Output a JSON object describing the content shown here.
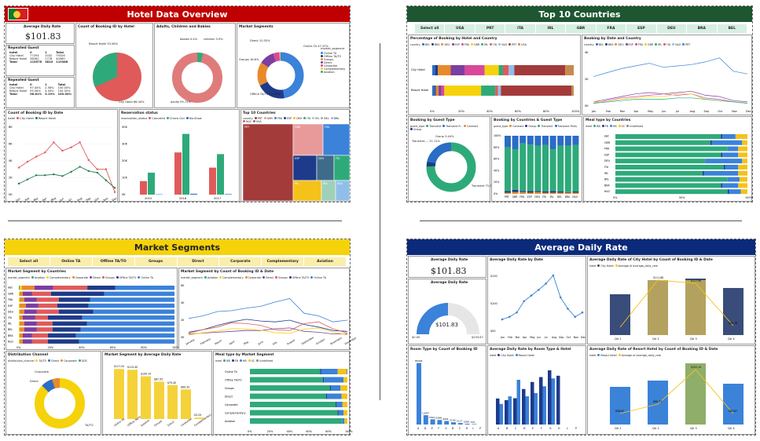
{
  "hotel": {
    "title": "Hotel Data Overview",
    "adr_label": "Average Daily Rate",
    "adr_value": "$101.83",
    "repeated_label": "Repeated Guest",
    "rep1": {
      "head": [
        "hotel",
        "0",
        "1",
        "Total"
      ],
      "rows": [
        [
          "City Hotel",
          "77294",
          "2032",
          "79326"
        ],
        [
          "Resort Hotel",
          "38282",
          "1778",
          "40060"
        ],
        [
          "Total",
          "115576",
          "3810",
          "119386"
        ]
      ]
    },
    "rep2": {
      "head": [
        "hotel",
        "0",
        "1",
        "Total"
      ],
      "rows": [
        [
          "City Hotel",
          "97.44%",
          "2.56%",
          "100.00%"
        ],
        [
          "Resort Hotel",
          "95.56%",
          "4.44%",
          "100.00%"
        ],
        [
          "Total",
          "96.81%",
          "3.19%",
          "100.00%"
        ]
      ]
    },
    "pie_title": "Count of Booking ID by Hotel",
    "pie_label_resort": "Resort Hotel 33.56%",
    "pie_label_city": "City Hotel 66.44%",
    "donut1_title": "Adults, Children and Babies",
    "donut1_l1": "babies 0.4%",
    "donut1_l2": "children 3.9%",
    "donut1_l3": "adults 95.72%",
    "donut2_title": "Market Segments",
    "donut2_legend_title": "market_segment",
    "donut2_legend": [
      "Online TA",
      "Offline TA/TO",
      "Groups",
      "Direct",
      "Corporate",
      "Complementary",
      "Aviation"
    ],
    "donut2_l1": "Online TA 47.37%",
    "donut2_l2": "Offline TA/TO 20.29%",
    "donut2_l3": "Groups 16.6%",
    "donut2_l4": "Direct 10.55%",
    "donut2_l5": "Corporate 4.43%",
    "line_title": "Count of Booking ID by Date",
    "line_legend": [
      "hotel",
      "City Hotel",
      "Resort Hotel"
    ],
    "line_y": [
      "8K",
      "6K",
      "4K",
      "2K",
      "0K"
    ],
    "line_x": [
      "Jan",
      "Feb",
      "Mar",
      "Apr",
      "May",
      "Jun",
      "Jul",
      "Aug",
      "Sep",
      "Oct",
      "Nov",
      "Dec"
    ],
    "res_title": "Reservation status",
    "res_legend": [
      "reservation_status",
      "Canceled",
      "Check-Out",
      "No-Show"
    ],
    "res_y": [
      "40K",
      "30K",
      "20K",
      "10K",
      "0K"
    ],
    "res_x": [
      "2015",
      "2016",
      "2017"
    ],
    "tree_title": "Top 10 Countries",
    "tree_legend": [
      "country",
      "PRT",
      "GBR",
      "FRA",
      "ESP",
      "DEU",
      "ITA",
      "IRL",
      "BEL",
      "BRA",
      "NLD",
      "USA"
    ],
    "tree_labels": [
      "PRT",
      "GBR",
      "FRA",
      "ESP",
      "DEU",
      "ITA",
      "IRL",
      "BEL",
      "NLD"
    ]
  },
  "countries": {
    "title": "Top 10 Countries",
    "slicer": [
      "Select all",
      "USA",
      "PRT",
      "ITA",
      "IRL",
      "GBR",
      "FRA",
      "ESP",
      "DEU",
      "BRA",
      "BEL"
    ],
    "pct_title": "Percentage of Booking by Hotel and Country",
    "pct_legend": [
      "country",
      "BEL",
      "BRA",
      "DEU",
      "ESP",
      "FRA",
      "GBR",
      "IRL",
      "ITA",
      "NLD",
      "PRT",
      "USA"
    ],
    "pct_rows": [
      "City Hotel",
      "Resort Hotel"
    ],
    "pct_x": [
      "0%",
      "20%",
      "40%",
      "60%",
      "80%",
      "100%"
    ],
    "date_title": "Booking by Date and Country",
    "date_legend": [
      "country",
      "BEL",
      "BRA",
      "DEU",
      "ESP",
      "FRA",
      "GBR",
      "IRL",
      "ITA",
      "NLD",
      "PRT"
    ],
    "date_y": [
      "4K",
      "2K",
      "0K"
    ],
    "date_x": [
      "Jan",
      "Feb",
      "Mar",
      "Apr",
      "May",
      "Jun",
      "Jul",
      "Aug",
      "Sep",
      "Oct",
      "Nov",
      "Dec"
    ],
    "guest_title": "Booking by Guest Type",
    "guest_legend": [
      "guest_type",
      "Transient",
      "Transient-P...",
      "Contract",
      "Group"
    ],
    "guest_l1": "Transient-... 21.11%",
    "guest_l2": "Group 3.44%",
    "guest_l3": "Transient 75.71%",
    "cg_title": "Booking by Countries & Guest Type",
    "cg_legend": [
      "guest_type",
      "Contract",
      "Group",
      "Transient",
      "Transient-Party"
    ],
    "cg_x": [
      "PRT",
      "GBR",
      "FRA",
      "ESP",
      "DEU",
      "ITA",
      "IRL",
      "BEL",
      "BRA",
      "NLD"
    ],
    "cg_y": [
      "100%",
      "80%",
      "60%",
      "40%",
      "20%",
      "0%"
    ],
    "meal_title": "Meal type by Countries",
    "meal_legend": [
      "meal",
      "BB",
      "FB",
      "HB",
      "SC",
      "Undefined"
    ],
    "meal_rows": [
      "PRT",
      "GBR",
      "FRA",
      "ESP",
      "DEU",
      "ITA",
      "IRL",
      "BEL",
      "BRA",
      "NLD"
    ],
    "meal_x": [
      "0%",
      "50%",
      "100%"
    ]
  },
  "market": {
    "title": "Market Segments",
    "slicer": [
      "Select all",
      "Online TA",
      "Offline TA/TO",
      "Groups",
      "Direct",
      "Corporate",
      "Complementary",
      "Aviation"
    ],
    "bc_title": "Market Segment by Countries",
    "bc_legend": [
      "market_segment",
      "Aviation",
      "Complementary",
      "Corporate",
      "Direct",
      "Groups",
      "Offline TA/TO",
      "Online TA"
    ],
    "bc_rows": [
      "PRT",
      "GBR",
      "FRA",
      "ESP",
      "DEU",
      "ITA",
      "IRL",
      "BEL",
      "BRA",
      "NLD"
    ],
    "bc_x": [
      "0%",
      "20%",
      "40%",
      "60%",
      "80%",
      "100%"
    ],
    "ms_title": "Market Segment by Count of Booking ID & Date",
    "ms_legend": [
      "market_segment",
      "Aviation",
      "Complementary",
      "Corporate",
      "Direct",
      "Groups",
      "Offline TA/TO",
      "Online TA"
    ],
    "ms_y": [
      "6K",
      "4K",
      "2K",
      "0K"
    ],
    "ms_x": [
      "January",
      "February",
      "March",
      "April",
      "May",
      "June",
      "July",
      "August",
      "September",
      "October",
      "November",
      "December"
    ],
    "dc_title": "Distribution Channel",
    "dc_legend": [
      "distribution_channel",
      "TA/TO",
      "Direct",
      "Corporate",
      "GDS"
    ],
    "dc_l1": "Corporate",
    "dc_l2": "Direct",
    "dc_l3": "TA/TO",
    "adr_title": "Market Segment by Average Daily Rate",
    "adr_vals": [
      "$117.20",
      "$115.40",
      "$100.14",
      "$87.55",
      "$79.40",
      "$69.35",
      "$3.29"
    ],
    "adr_x": [
      "Online TA",
      "Offline TA/TO",
      "Aviation",
      "Groups",
      "Direct",
      "Corporate",
      "Complementary"
    ],
    "meal_title": "Meal type by Market Segment",
    "meal_legend": [
      "meal",
      "BB",
      "FB",
      "HB",
      "SC",
      "Undefined"
    ],
    "meal_rows": [
      "Online TA",
      "Offline TA/TO",
      "Groups",
      "Direct",
      "Corporate",
      "Complementary",
      "Aviation"
    ],
    "meal_x": [
      "0%",
      "20%",
      "40%",
      "60%",
      "80%",
      "100%"
    ]
  },
  "adrpage": {
    "title": "Average Daily Rate",
    "kpi_label": "Average Daily Rate",
    "kpi_value": "$101.83",
    "gauge_label": "Average Daily Rate",
    "gauge_value": "$101.83",
    "gauge_min": "$0.00",
    "gauge_max": "$203.67",
    "line_title": "Average Daily Rate by Date",
    "line_y": [
      "$150",
      "$100",
      "$50"
    ],
    "line_x": [
      "Jan",
      "Feb",
      "Mar",
      "Apr",
      "May",
      "Jun",
      "Jul",
      "Aug",
      "Sep",
      "Oct",
      "Nov",
      "Dec"
    ],
    "city_title": "Average Daily Rate of City Hotel by Count of Booking ID & Date",
    "city_legend": [
      "hotel",
      "City Hotel",
      "Average of average_daily_rate"
    ],
    "city_x": [
      "Qtr 1",
      "Qtr 2",
      "Qtr 3",
      "Qtr 4"
    ],
    "city_vals": [
      "$111.68",
      "$117.98",
      "$95.78"
    ],
    "room_title": "Room Type by Count of Booking ID",
    "room_vals": [
      "85994",
      "13047",
      "7294",
      "6388",
      "4941",
      "3190",
      "2117",
      "1089",
      "725"
    ],
    "room_x": [
      "A",
      "D",
      "E",
      "F",
      "G",
      "B",
      "C",
      "H",
      "L",
      "P"
    ],
    "rh_title": "Average Daily Rate by Room Type & Hotel",
    "rh_legend": [
      "hotel",
      "City Hotel",
      "Resort Hotel"
    ],
    "rh_x": [
      "A",
      "B",
      "C",
      "D",
      "E",
      "F",
      "G",
      "H",
      "L",
      "P"
    ],
    "resort_title": "Average Daily Rate of Resort Hotel by Count of Booking ID & Date",
    "resort_legend": [
      "hotel",
      "Resort Hotel",
      "Average of average_daily_rate"
    ],
    "resort_x": [
      "Qtr 1",
      "Qtr 2",
      "Qtr 3",
      "Qtr 4"
    ],
    "resort_vals": [
      "$58.62",
      "$90.73",
      "$152.10",
      "$63.87"
    ]
  },
  "colors": {
    "red": "#c00000",
    "green": "#1e5631",
    "yellow": "#f5d20a",
    "navy": "#0b2a7a",
    "teal": "#3fbf8c"
  }
}
